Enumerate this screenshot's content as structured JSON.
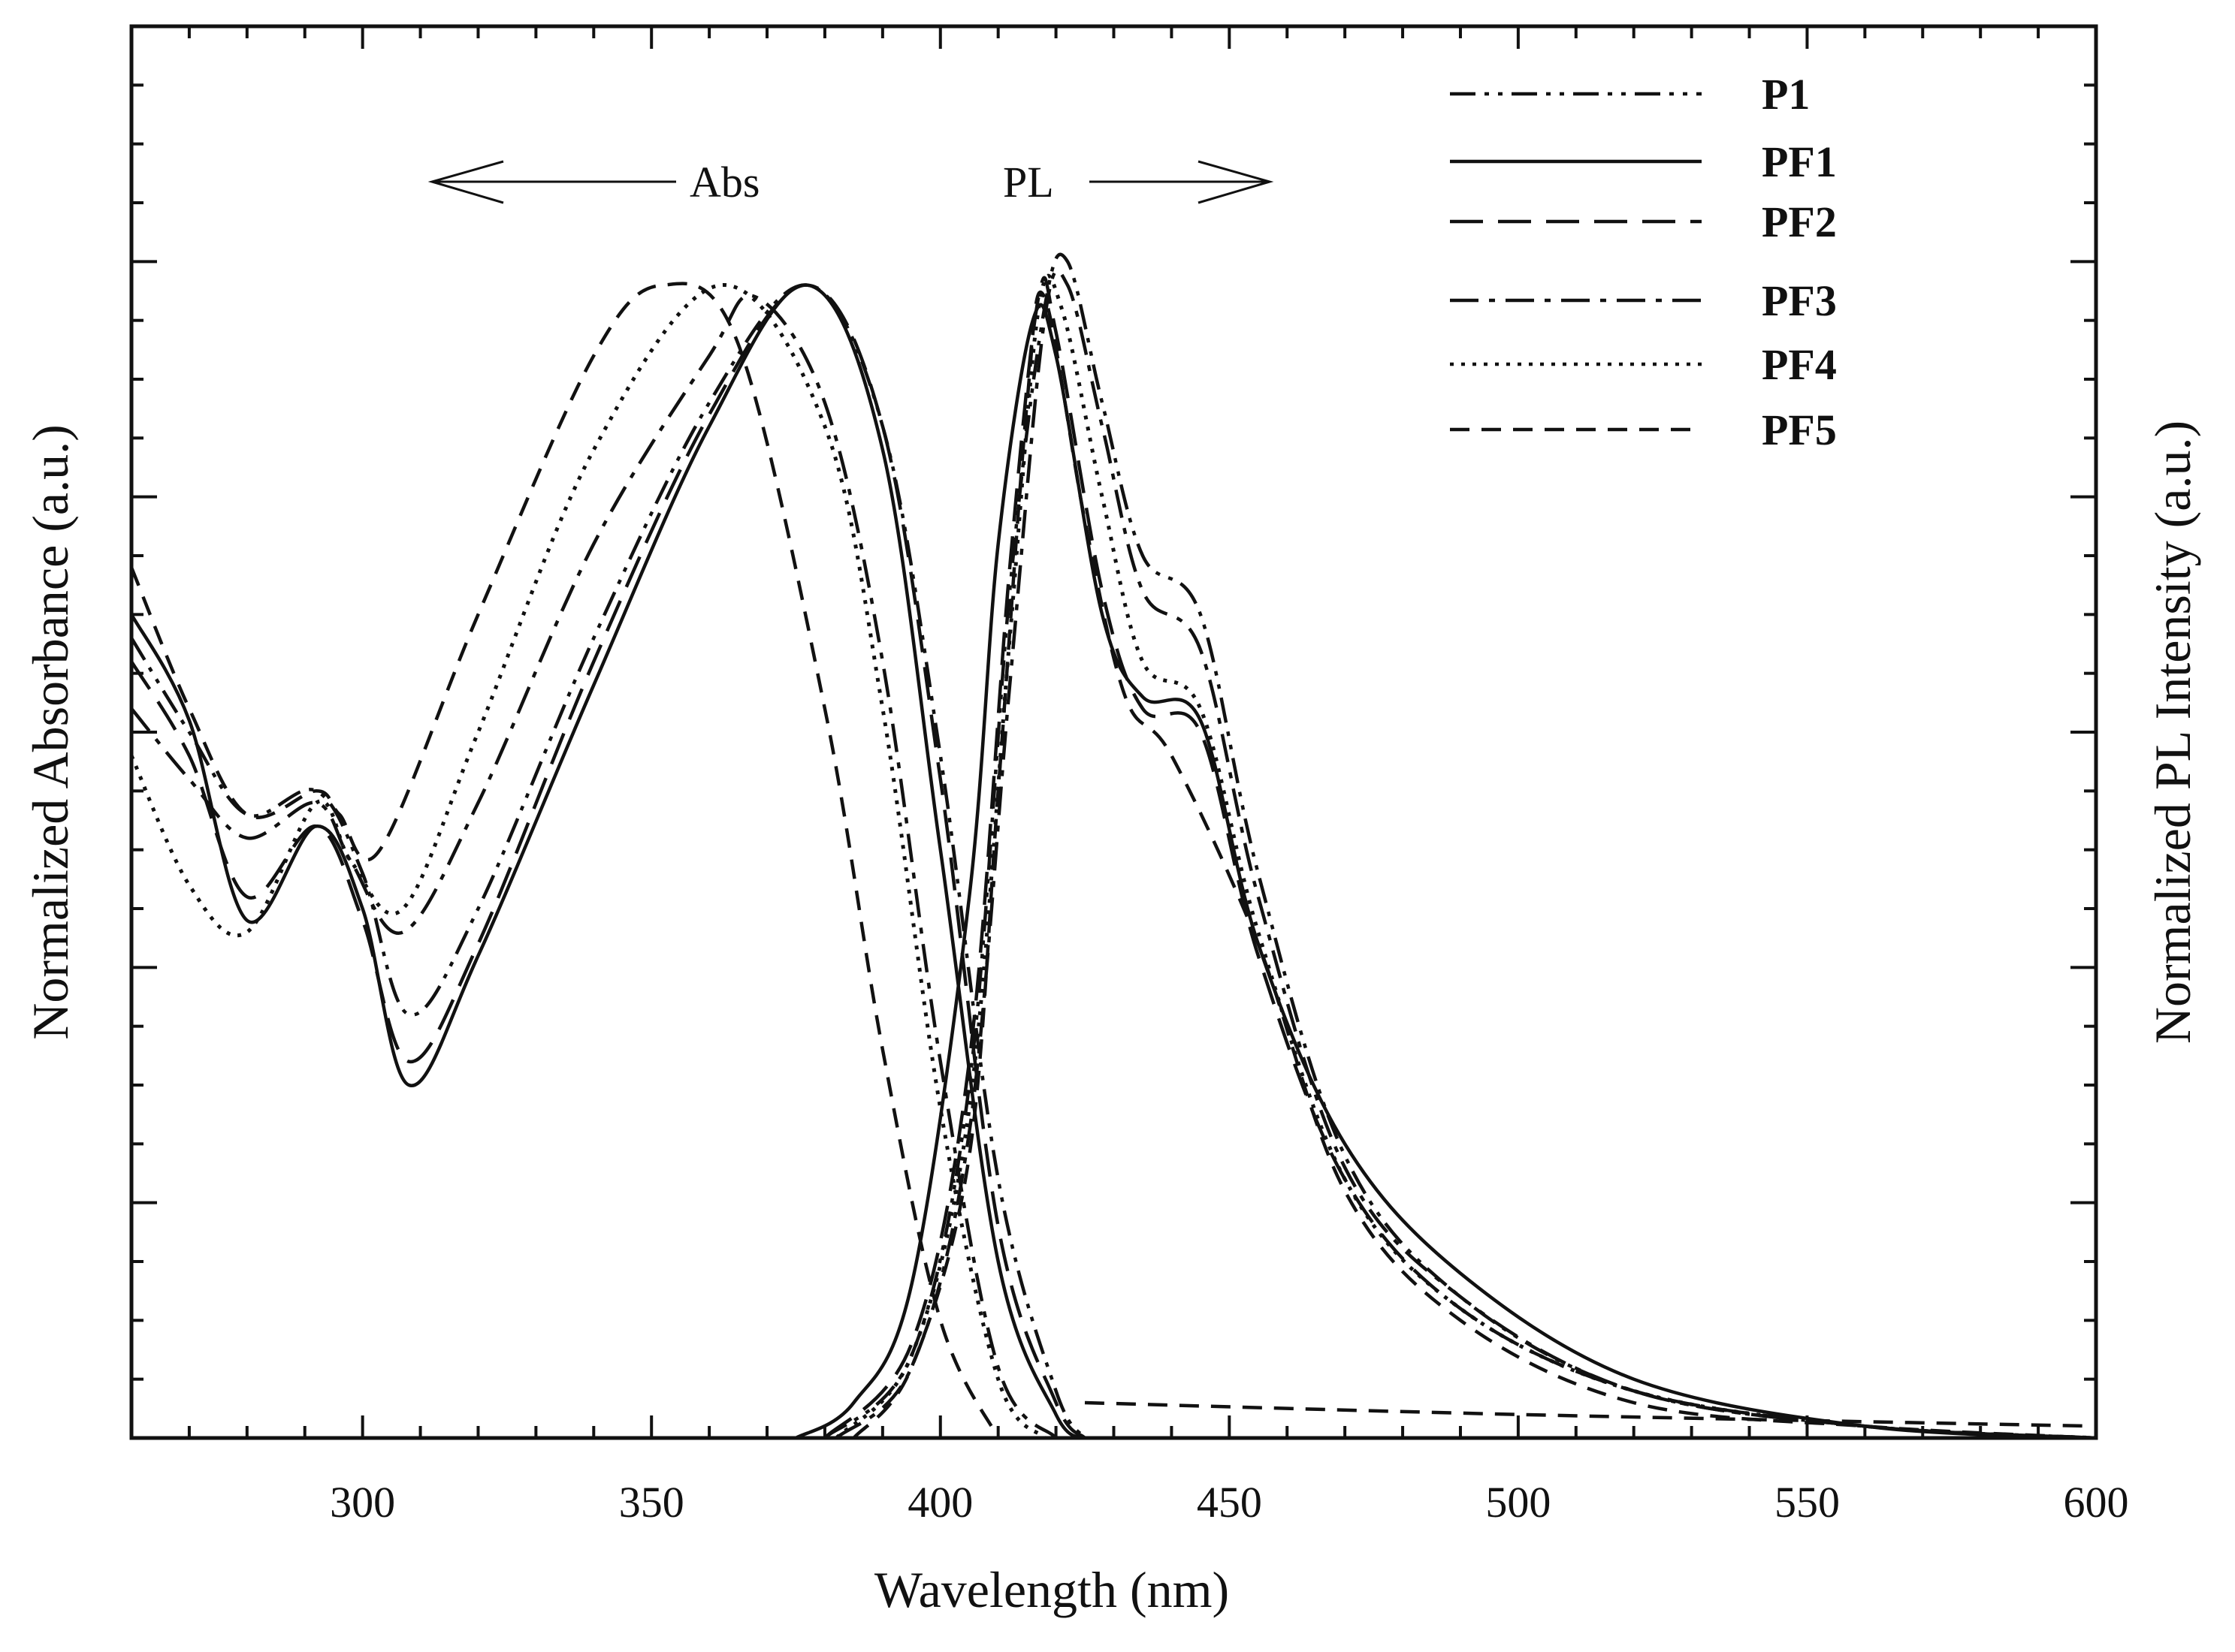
{
  "chart_data": {
    "type": "line",
    "title": "",
    "xlabel": "Wavelength (nm)",
    "ylabel_left": "Normalized Absorbance (a.u.)",
    "ylabel_right": "Normalized PL Intensity (a.u.)",
    "xlim": [
      260,
      600
    ],
    "ylim": [
      0,
      1.2
    ],
    "x_ticks": [
      300,
      350,
      400,
      450,
      500,
      550,
      600
    ],
    "x_tick_labels": [
      "300",
      "350",
      "400",
      "450",
      "500",
      "550",
      "600"
    ],
    "annotations": {
      "abs": "Abs",
      "pl": "PL"
    },
    "legend": [
      {
        "name": "P1",
        "dash": "dash-dot-dot"
      },
      {
        "name": "PF1",
        "dash": "solid"
      },
      {
        "name": "PF2",
        "dash": "long-dash"
      },
      {
        "name": "PF3",
        "dash": "dash-dot"
      },
      {
        "name": "PF4",
        "dash": "dotted"
      },
      {
        "name": "PF5",
        "dash": "dashed"
      }
    ],
    "series": [
      {
        "name": "P1",
        "dash": "dash-dot-dot",
        "absorbance": {
          "x": [
            260,
            270,
            280,
            292,
            300,
            308,
            320,
            340,
            360,
            377,
            390,
            400,
            410,
            420,
            425
          ],
          "y": [
            0.68,
            0.6,
            0.53,
            0.55,
            0.48,
            0.36,
            0.45,
            0.68,
            0.88,
            0.98,
            0.86,
            0.58,
            0.22,
            0.04,
            0.0
          ]
        },
        "pl": {
          "x": [
            380,
            395,
            405,
            412,
            418,
            422,
            428,
            435,
            445,
            455,
            470,
            490,
            520,
            560,
            600
          ],
          "y": [
            0.0,
            0.07,
            0.3,
            0.72,
            0.96,
            1.0,
            0.88,
            0.75,
            0.7,
            0.48,
            0.24,
            0.12,
            0.04,
            0.01,
            0.0
          ]
        }
      },
      {
        "name": "PF1",
        "dash": "solid",
        "absorbance": {
          "x": [
            260,
            270,
            280,
            292,
            300,
            308,
            320,
            340,
            360,
            377,
            390,
            400,
            410,
            420,
            425
          ],
          "y": [
            0.7,
            0.61,
            0.44,
            0.52,
            0.45,
            0.3,
            0.41,
            0.64,
            0.86,
            0.98,
            0.84,
            0.5,
            0.15,
            0.02,
            0.0
          ]
        },
        "pl": {
          "x": [
            375,
            385,
            395,
            405,
            410,
            416,
            420,
            428,
            435,
            445,
            455,
            470,
            490,
            520,
            560,
            600
          ],
          "y": [
            0.0,
            0.03,
            0.13,
            0.46,
            0.76,
            0.95,
            0.92,
            0.7,
            0.63,
            0.61,
            0.42,
            0.25,
            0.14,
            0.05,
            0.01,
            0.0
          ]
        }
      },
      {
        "name": "PF2",
        "dash": "long-dash",
        "absorbance": {
          "x": [
            260,
            270,
            280,
            292,
            300,
            308,
            320,
            340,
            360,
            377,
            390,
            400,
            410,
            420,
            425
          ],
          "y": [
            0.66,
            0.58,
            0.46,
            0.52,
            0.44,
            0.32,
            0.42,
            0.66,
            0.87,
            0.98,
            0.86,
            0.56,
            0.18,
            0.03,
            0.0
          ]
        },
        "pl": {
          "x": [
            380,
            395,
            405,
            412,
            417,
            420,
            428,
            435,
            445,
            455,
            470,
            490,
            520,
            560,
            600
          ],
          "y": [
            0.0,
            0.08,
            0.32,
            0.74,
            0.97,
            0.94,
            0.72,
            0.62,
            0.6,
            0.41,
            0.22,
            0.11,
            0.04,
            0.01,
            0.0
          ]
        }
      },
      {
        "name": "PF3",
        "dash": "dash-dot",
        "absorbance": {
          "x": [
            260,
            270,
            280,
            292,
            298,
            307,
            320,
            340,
            360,
            368,
            380,
            390,
            400,
            410,
            420
          ],
          "y": [
            0.62,
            0.56,
            0.51,
            0.54,
            0.49,
            0.43,
            0.54,
            0.76,
            0.92,
            0.97,
            0.88,
            0.66,
            0.32,
            0.06,
            0.0
          ]
        },
        "pl": {
          "x": [
            382,
            395,
            405,
            412,
            418,
            422,
            428,
            435,
            445,
            455,
            470,
            490,
            520,
            560,
            600
          ],
          "y": [
            0.0,
            0.06,
            0.26,
            0.64,
            0.95,
            0.98,
            0.86,
            0.72,
            0.67,
            0.46,
            0.23,
            0.12,
            0.04,
            0.01,
            0.0
          ]
        }
      },
      {
        "name": "PF4",
        "dash": "dotted",
        "absorbance": {
          "x": [
            260,
            270,
            280,
            292,
            298,
            307,
            320,
            340,
            362,
            380,
            390,
            400,
            410,
            418
          ],
          "y": [
            0.58,
            0.47,
            0.43,
            0.54,
            0.49,
            0.45,
            0.6,
            0.84,
            0.98,
            0.86,
            0.62,
            0.28,
            0.05,
            0.0
          ]
        },
        "pl": {
          "x": [
            382,
            395,
            405,
            412,
            417,
            421,
            428,
            435,
            445,
            455,
            470,
            490,
            520,
            560,
            600
          ],
          "y": [
            0.0,
            0.07,
            0.28,
            0.68,
            0.96,
            0.96,
            0.8,
            0.66,
            0.62,
            0.43,
            0.22,
            0.11,
            0.04,
            0.01,
            0.0
          ]
        }
      },
      {
        "name": "PF5",
        "dash": "dashed",
        "absorbance": {
          "x": [
            260,
            270,
            280,
            292,
            296,
            303,
            320,
            340,
            352,
            365,
            380,
            390,
            400,
            410
          ],
          "y": [
            0.74,
            0.62,
            0.53,
            0.55,
            0.53,
            0.5,
            0.7,
            0.92,
            0.98,
            0.93,
            0.62,
            0.33,
            0.1,
            0.0
          ]
        },
        "pl": {
          "x": [
            385,
            395,
            405,
            410,
            415,
            418,
            425,
            432,
            440,
            455,
            470,
            490,
            520,
            560,
            600
          ],
          "y": [
            0.0,
            0.06,
            0.24,
            0.55,
            0.88,
            0.97,
            0.78,
            0.63,
            0.58,
            0.42,
            0.21,
            0.1,
            0.03,
            0.01,
            0.0
          ]
        },
        "pl_baseline": {
          "x": [
            425,
            500,
            600
          ],
          "y": [
            0.03,
            0.02,
            0.01
          ]
        }
      }
    ]
  }
}
